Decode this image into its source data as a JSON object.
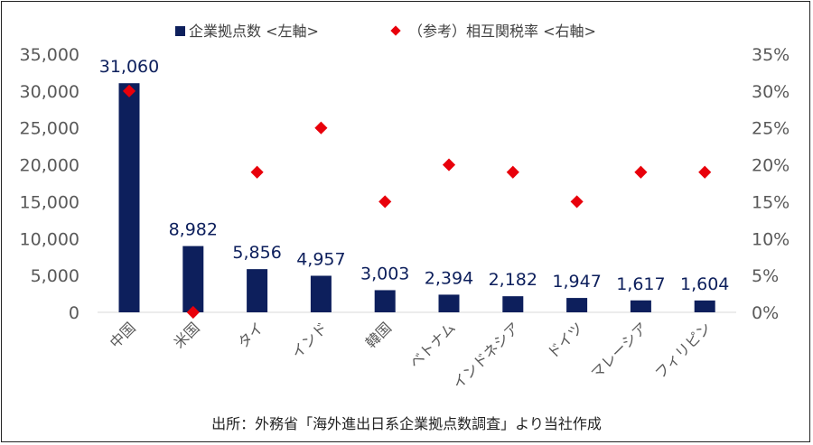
{
  "chart_data": {
    "type": "bar",
    "categories": [
      "中国",
      "米国",
      "タイ",
      "インド",
      "韓国",
      "ベトナム",
      "インドネシア",
      "ドイツ",
      "マレーシア",
      "フィリピン"
    ],
    "series": [
      {
        "name": "企業拠点数 <左軸>",
        "type": "bar",
        "axis": "left",
        "color": "#0d1f5c",
        "values": [
          31060,
          8982,
          5856,
          4957,
          3003,
          2394,
          2182,
          1947,
          1617,
          1604
        ],
        "labels": [
          "31,060",
          "8,982",
          "5,856",
          "4,957",
          "3,003",
          "2,394",
          "2,182",
          "1,947",
          "1,617",
          "1,604"
        ]
      },
      {
        "name": "（参考）相互関税率 <右軸>",
        "type": "scatter",
        "axis": "right",
        "color": "#e8000b",
        "values": [
          30,
          0,
          19,
          25,
          15,
          20,
          19,
          15,
          19,
          19
        ]
      }
    ],
    "left_axis": {
      "min": 0,
      "max": 35000,
      "ticks": [
        "0",
        "5,000",
        "10,000",
        "15,000",
        "20,000",
        "25,000",
        "30,000",
        "35,000"
      ]
    },
    "right_axis": {
      "min": 0,
      "max": 35,
      "ticks": [
        "0%",
        "5%",
        "10%",
        "15%",
        "20%",
        "25%",
        "30%",
        "35%"
      ]
    },
    "legend_position": "top",
    "grid": false
  },
  "source_note": "出所：外務省「海外進出日系企業拠点数調査」より当社作成"
}
